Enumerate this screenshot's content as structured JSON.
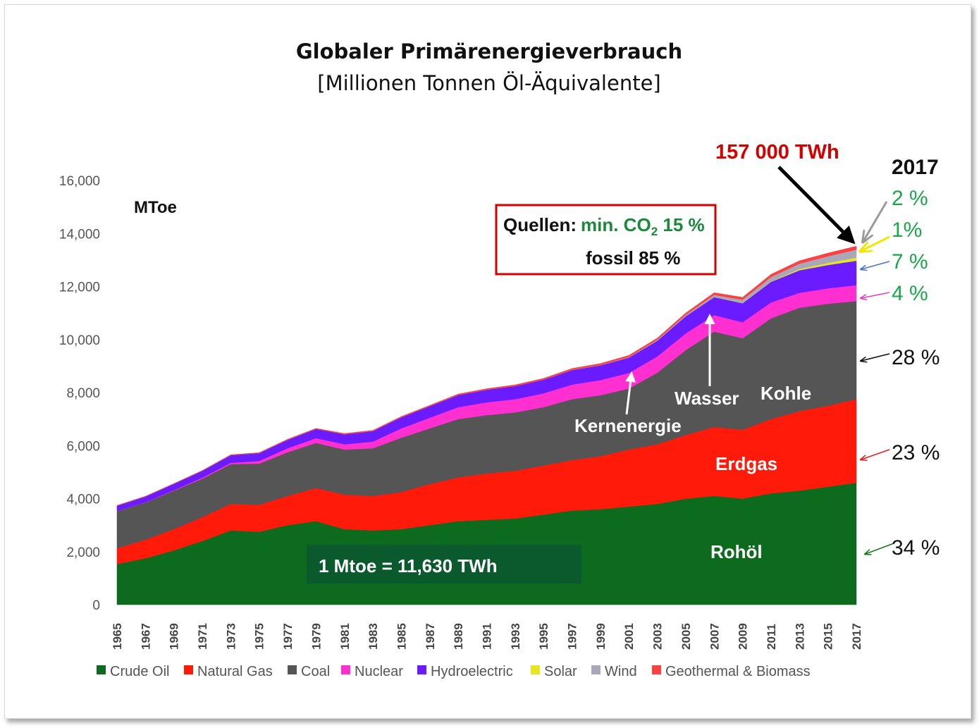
{
  "title": "Globaler Primärenergieverbrauch",
  "subtitle": "[Millionen Tonnen Öl-Äquivalente]",
  "unit_label": "MToe",
  "total_label": "157 000 TWh",
  "year_label": "2017",
  "sources_box": {
    "line1_prefix": "Quellen:",
    "line1_green": "min. CO",
    "line1_sub": "2",
    "line1_pct": " 15 %",
    "line2": "fossil 85 %"
  },
  "conversion_label": "1 Mtoe =  11,630  TWh",
  "area_labels": {
    "oil": "Rohöl",
    "gas": "Erdgas",
    "coal": "Kohle",
    "hydro": "Wasser",
    "nuclear": "Kernenergie"
  },
  "percent_labels": [
    {
      "text": "2 %",
      "color": "#1aa64a",
      "arrow": "#9a9a9a"
    },
    {
      "text": "1%",
      "color": "#1aa64a",
      "arrow": "#f0e800"
    },
    {
      "text": "7 %",
      "color": "#1aa64a",
      "arrow": "#4a74c0"
    },
    {
      "text": "4 %",
      "color": "#1aa64a",
      "arrow": "#e040c0"
    },
    {
      "text": "28 %",
      "color": "#111111",
      "arrow": "#111111"
    },
    {
      "text": "23 %",
      "color": "#111111",
      "arrow": "#e02020"
    },
    {
      "text": "34 %",
      "color": "#111111",
      "arrow": "#1a7a1a"
    }
  ],
  "chart_data": {
    "type": "area",
    "stacked": true,
    "title": "Globaler Primärenergieverbrauch",
    "ylabel": "MToe",
    "ylim": [
      0,
      16000
    ],
    "yticks": [
      "0",
      "2,000",
      "4,000",
      "6,000",
      "8,000",
      "10,000",
      "12,000",
      "14,000",
      "16,000"
    ],
    "x": [
      1965,
      1967,
      1969,
      1971,
      1973,
      1975,
      1977,
      1979,
      1981,
      1983,
      1985,
      1987,
      1989,
      1991,
      1993,
      1995,
      1997,
      1999,
      2001,
      2003,
      2005,
      2007,
      2009,
      2011,
      2013,
      2015,
      2017
    ],
    "xticks": [
      "1965",
      "1967",
      "1969",
      "1971",
      "1973",
      "1975",
      "1977",
      "1979",
      "1981",
      "1983",
      "1985",
      "1987",
      "1989",
      "1991",
      "1993",
      "1995",
      "1997",
      "1999",
      "2001",
      "2003",
      "2005",
      "2007",
      "2009",
      "2011",
      "2013",
      "2015",
      "2017"
    ],
    "colors": [
      "#0d6b1e",
      "#ff1a0a",
      "#555555",
      "#ff2fd0",
      "#6a1bff",
      "#e6e620",
      "#a8a8b8",
      "#ff4040"
    ],
    "series": [
      {
        "name": "Crude Oil",
        "values": [
          1530,
          1750,
          2050,
          2400,
          2800,
          2750,
          3000,
          3150,
          2850,
          2800,
          2850,
          3000,
          3150,
          3200,
          3250,
          3400,
          3550,
          3600,
          3700,
          3800,
          4000,
          4100,
          4000,
          4200,
          4300,
          4450,
          4600
        ]
      },
      {
        "name": "Natural Gas",
        "values": [
          600,
          700,
          800,
          900,
          1000,
          1020,
          1100,
          1250,
          1300,
          1300,
          1400,
          1550,
          1650,
          1750,
          1800,
          1850,
          1900,
          2000,
          2150,
          2250,
          2400,
          2600,
          2600,
          2800,
          3000,
          3050,
          3150
        ]
      },
      {
        "name": "Coal",
        "values": [
          1400,
          1400,
          1450,
          1450,
          1500,
          1550,
          1650,
          1700,
          1700,
          1800,
          2050,
          2100,
          2200,
          2200,
          2200,
          2200,
          2300,
          2300,
          2300,
          2700,
          3200,
          3600,
          3450,
          3800,
          3900,
          3850,
          3700
        ]
      },
      {
        "name": "Nuclear",
        "values": [
          5,
          10,
          20,
          40,
          50,
          100,
          150,
          180,
          200,
          250,
          350,
          400,
          450,
          480,
          500,
          520,
          550,
          570,
          590,
          610,
          630,
          620,
          600,
          600,
          560,
          580,
          600
        ]
      },
      {
        "name": "Hydroelectric",
        "values": [
          200,
          220,
          240,
          260,
          290,
          300,
          320,
          350,
          380,
          400,
          420,
          440,
          460,
          480,
          500,
          520,
          550,
          560,
          580,
          600,
          650,
          680,
          720,
          780,
          850,
          880,
          920
        ]
      },
      {
        "name": "Solar",
        "values": [
          0,
          0,
          0,
          0,
          0,
          0,
          0,
          0,
          0,
          0,
          0,
          0,
          0,
          0,
          0,
          0,
          0,
          0,
          0,
          0,
          0,
          5,
          10,
          20,
          50,
          80,
          120
        ]
      },
      {
        "name": "Wind",
        "values": [
          0,
          0,
          0,
          0,
          0,
          0,
          0,
          0,
          0,
          0,
          0,
          0,
          0,
          0,
          0,
          0,
          5,
          10,
          20,
          30,
          50,
          80,
          120,
          160,
          200,
          250,
          300
        ]
      },
      {
        "name": "Geothermal & Biomass",
        "values": [
          10,
          10,
          10,
          10,
          15,
          15,
          20,
          20,
          25,
          25,
          30,
          30,
          35,
          35,
          40,
          45,
          50,
          55,
          60,
          65,
          70,
          80,
          90,
          100,
          110,
          120,
          130
        ]
      }
    ]
  }
}
